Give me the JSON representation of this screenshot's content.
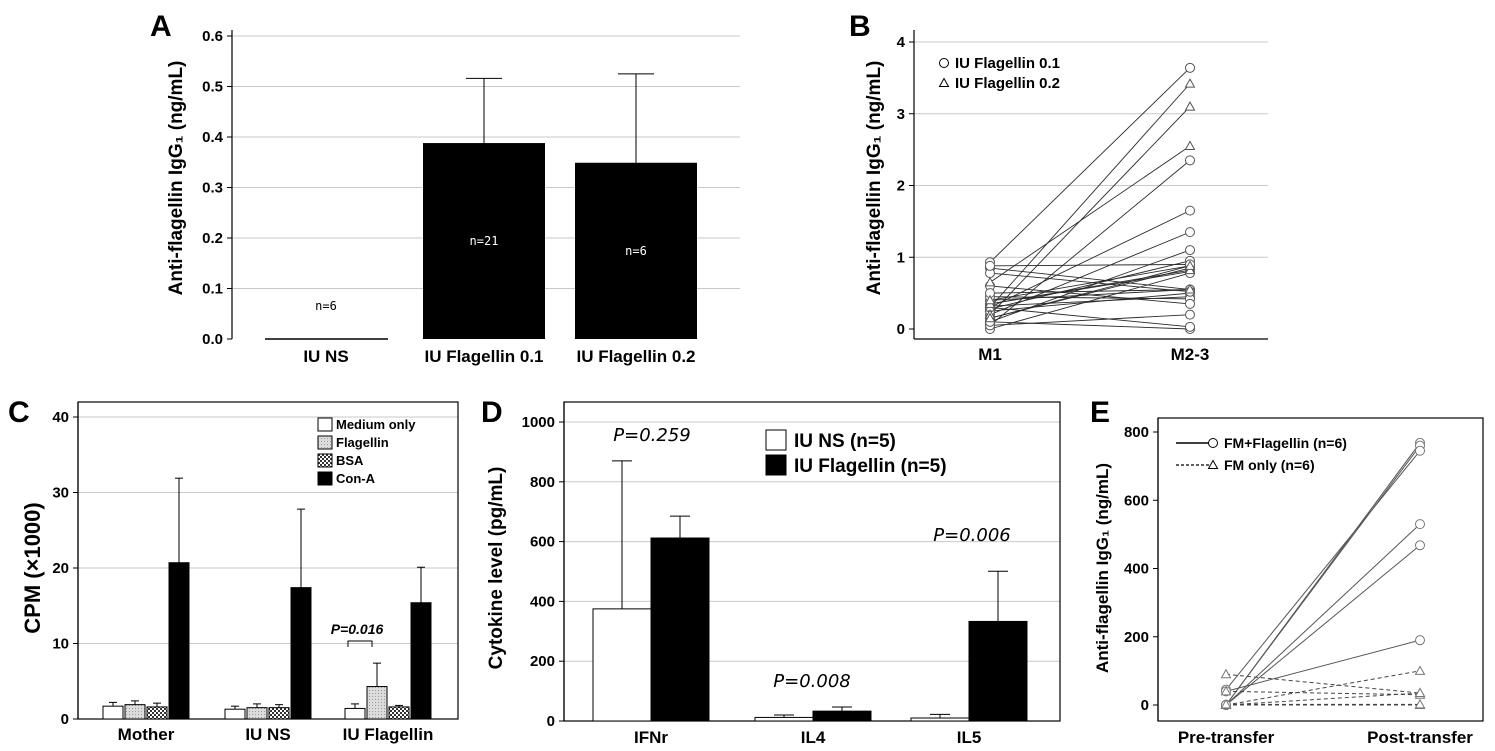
{
  "chart_data": [
    {
      "panel": "A",
      "type": "bar",
      "ylabel": "Anti-flagellin IgG₁ (ng/mL)",
      "ylim": [
        0,
        0.6
      ],
      "yticks": [
        "0.0",
        "0.1",
        "0.2",
        "0.3",
        "0.4",
        "0.5",
        "0.6"
      ],
      "grid": true,
      "categories": [
        "IU NS",
        "IU Flagellin 0.1",
        "IU Flagellin 0.2"
      ],
      "values": [
        0.001,
        0.388,
        0.349
      ],
      "errors": [
        0.0,
        0.128,
        0.176
      ],
      "bar_labels": [
        "n=6",
        "n=21",
        "n=6"
      ]
    },
    {
      "panel": "B",
      "type": "line",
      "ylabel": "Anti-flagellin IgG₁ (ng/mL)",
      "ylim": [
        0,
        4
      ],
      "yticks": [
        "0",
        "1",
        "2",
        "3",
        "4"
      ],
      "grid": true,
      "x": [
        "M1",
        "M2-3"
      ],
      "legend_position": "top-left",
      "series": [
        {
          "name": "IU Flagellin 0.1",
          "marker": "circle",
          "pairs": [
            [
              0.93,
              3.64
            ],
            [
              0.05,
              2.35
            ],
            [
              0.3,
              1.65
            ],
            [
              0.2,
              1.35
            ],
            [
              0.1,
              1.1
            ],
            [
              0.28,
              0.95
            ],
            [
              0.4,
              0.88
            ],
            [
              0.15,
              0.85
            ],
            [
              0.35,
              0.8
            ],
            [
              0.0,
              0.78
            ],
            [
              0.85,
              0.55
            ],
            [
              0.25,
              0.5
            ],
            [
              0.32,
              0.45
            ],
            [
              0.45,
              0.42
            ],
            [
              0.6,
              0.35
            ],
            [
              0.05,
              0.2
            ],
            [
              0.1,
              0.0
            ],
            [
              0.5,
              0.55
            ],
            [
              0.78,
              0.52
            ],
            [
              0.88,
              0.9
            ],
            [
              0.3,
              0.03
            ]
          ]
        },
        {
          "name": "IU Flagellin 0.2",
          "marker": "triangle",
          "pairs": [
            [
              0.3,
              3.42
            ],
            [
              0.2,
              3.1
            ],
            [
              0.65,
              2.55
            ],
            [
              0.35,
              0.82
            ],
            [
              0.15,
              0.88
            ],
            [
              0.4,
              0.55
            ]
          ]
        }
      ]
    },
    {
      "panel": "C",
      "type": "bar",
      "ylabel": "CPM (×1000)",
      "ylim": [
        0,
        40
      ],
      "yticks": [
        "0",
        "10",
        "20",
        "30",
        "40"
      ],
      "grid": true,
      "categories": [
        "Mother",
        "IU NS",
        "IU Flagellin"
      ],
      "legend_position": "top-right",
      "series": [
        {
          "name": "Medium only",
          "fill": "white",
          "values": [
            1.7,
            1.3,
            1.4
          ],
          "errors": [
            0.5,
            0.4,
            0.6
          ]
        },
        {
          "name": "Flagellin",
          "fill": "light-dotted",
          "values": [
            1.9,
            1.5,
            4.3
          ],
          "errors": [
            0.5,
            0.5,
            3.1
          ]
        },
        {
          "name": "BSA",
          "fill": "checkered",
          "values": [
            1.6,
            1.5,
            1.6
          ],
          "errors": [
            0.5,
            0.4,
            0.2
          ]
        },
        {
          "name": "Con-A",
          "fill": "black",
          "values": [
            20.7,
            17.4,
            15.4
          ],
          "errors": [
            11.2,
            10.4,
            4.7
          ]
        }
      ],
      "annotations": [
        "P=0.016"
      ]
    },
    {
      "panel": "D",
      "type": "bar",
      "ylabel": "Cytokine level (pg/mL)",
      "ylim": [
        0,
        1000
      ],
      "yticks": [
        "0",
        "200",
        "400",
        "600",
        "800",
        "1000"
      ],
      "grid": true,
      "categories": [
        "IFNr",
        "IL4",
        "IL5"
      ],
      "legend_position": "top-right",
      "series": [
        {
          "name": "IU NS (n=5)",
          "fill": "white",
          "values": [
            375,
            12,
            10
          ],
          "errors": [
            495,
            8,
            12
          ]
        },
        {
          "name": "IU Flagellin (n=5)",
          "fill": "black",
          "values": [
            612,
            33,
            333
          ],
          "errors": [
            73,
            14,
            168
          ]
        }
      ],
      "annotations": [
        "P=0.259",
        "P=0.008",
        "P=0.006"
      ]
    },
    {
      "panel": "E",
      "type": "line",
      "ylabel": "Anti-flagellin IgG₁ (ng/mL)",
      "ylim": [
        0,
        800
      ],
      "yticks": [
        "0",
        "200",
        "400",
        "600",
        "800"
      ],
      "grid": false,
      "x": [
        "Pre-transfer",
        "Post-transfer"
      ],
      "legend_position": "top-left",
      "series": [
        {
          "name": "FM+Flagellin (n=6)",
          "line": "solid",
          "marker": "circle",
          "pairs": [
            [
              0,
              768
            ],
            [
              0,
              760
            ],
            [
              45,
              745
            ],
            [
              0,
              530
            ],
            [
              0,
              468
            ],
            [
              40,
              190
            ]
          ]
        },
        {
          "name": "FM only (n=6)",
          "line": "dashed",
          "marker": "triangle",
          "pairs": [
            [
              90,
              35
            ],
            [
              0,
              100
            ],
            [
              40,
              30
            ],
            [
              0,
              0
            ],
            [
              0,
              35
            ],
            [
              2,
              2
            ]
          ]
        }
      ]
    }
  ]
}
